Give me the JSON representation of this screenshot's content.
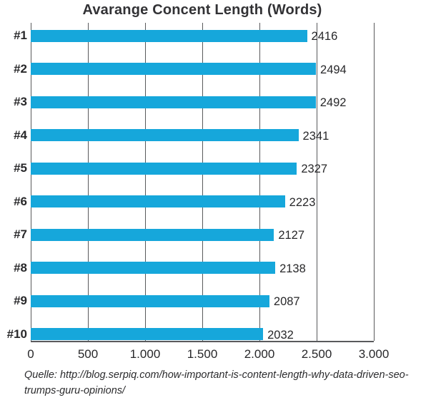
{
  "chart_data": {
    "type": "bar",
    "orientation": "horizontal",
    "title": "Avarange Concent Length (Words)",
    "categories": [
      "#1",
      "#2",
      "#3",
      "#4",
      "#5",
      "#6",
      "#7",
      "#8",
      "#9",
      "#10"
    ],
    "values": [
      2416,
      2494,
      2492,
      2341,
      2327,
      2223,
      2127,
      2138,
      2087,
      2032
    ],
    "xlim": [
      0,
      3000
    ],
    "x_ticks": [
      0,
      500,
      1000,
      1500,
      2000,
      2500,
      3000
    ],
    "x_tick_labels": [
      "0",
      "500",
      "1.000",
      "1.500",
      "2.000",
      "2.500",
      "3.000"
    ],
    "grid": true,
    "legend": false,
    "value_labels": true,
    "bar_color": "#16a7db",
    "grid_color": "#595a5c",
    "text_color": "#28282a"
  },
  "source": {
    "text": "Quelle: http://blog.serpiq.com/how-important-is-content-length-why-data-driven-seo-trumps-guru-opinions/"
  }
}
